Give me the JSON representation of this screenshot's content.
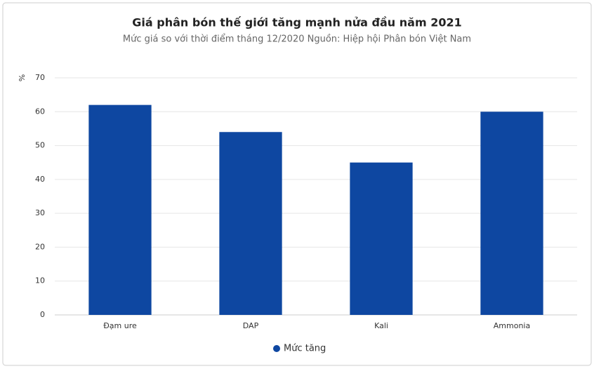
{
  "chart_data": {
    "type": "bar",
    "title": "Giá phân bón thế giới tăng mạnh nửa đầu năm 2021",
    "subtitle": "Mức giá so với thời điểm tháng 12/2020 Nguồn: Hiệp hội Phân bón Việt Nam",
    "y_label": "%",
    "categories": [
      "Đạm ure",
      "DAP",
      "Kali",
      "Ammonia"
    ],
    "series": [
      {
        "name": "Mức tăng",
        "color": "#0e47a1",
        "values": [
          62,
          54,
          45,
          60
        ]
      }
    ],
    "ylim": [
      0,
      70
    ],
    "yticks": [
      0,
      10,
      20,
      30,
      40,
      50,
      60,
      70
    ],
    "grid": true,
    "legend": "bottom"
  }
}
